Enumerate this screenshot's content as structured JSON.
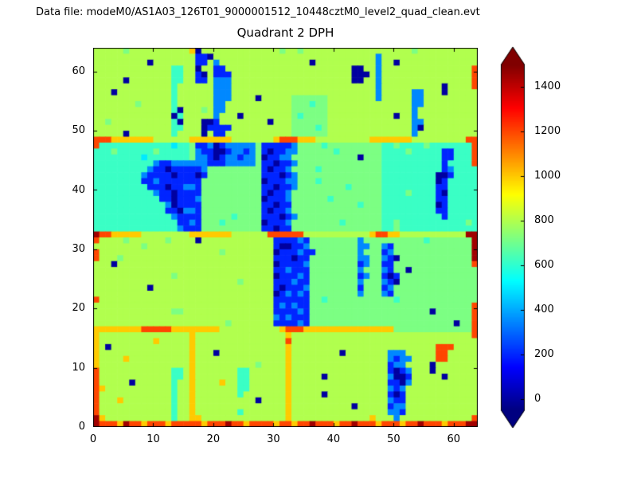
{
  "figure": {
    "header_label": "Data file: modeM0/AS1A03_126T01_9000001512_10448cztM0_level2_quad_clean.evt",
    "title": "Quadrant 2 DPH"
  },
  "chart_data": {
    "type": "heatmap",
    "title": "Quadrant 2 DPH",
    "xlabel": "",
    "ylabel": "",
    "xlim": [
      0,
      64
    ],
    "ylim": [
      0,
      64
    ],
    "grid": false,
    "xticks": [
      0,
      10,
      20,
      30,
      40,
      50,
      60
    ],
    "yticks": [
      0,
      10,
      20,
      30,
      40,
      50,
      60
    ],
    "colormap": "jet",
    "vmin": -50,
    "vmax": 1500,
    "colorbar_ticks": [
      0,
      200,
      400,
      600,
      800,
      1000,
      1200,
      1400
    ],
    "colorbar_extend": "both",
    "grid_encoding": {
      "0": 0,
      "1": 200,
      "2": 350,
      "3": 500,
      "4": 620,
      "5": 720,
      "6": 800,
      "7": 1000,
      "8": 1200,
      "9": 1450
    },
    "grid_rows_top_to_bottom": [
      "6666656666666666706666666666666566566666666666666666656666666666",
      "6666666666666666611066666666666666666666666666626666666666666666",
      "6666666660666666611626666666666666660666666666626606666666666666",
      "6666666666666446606611666666666666666666666006626666666666666668",
      "6666666666666446610611166666666666666666666000626666666666666668",
      "6666606666666446611622266666666666666666666006626666666666666668",
      "6666666666666466666622266666666666666666666666626666666666066668",
      "6660666666666466666622266666666666666666666666626666622666066666",
      "6666666666666466666622266660666665555556666666626666622666666666",
      "6666666566666466666622666666666665554556666666666666622666666666",
      "6666666666666406665622666666666665555556666666666666626666666666",
      "6666666666666046666626660666666665455556666666666606626666666666",
      "6656666666666406660016666666606665555556666666666666622666666666",
      "6666666666666446660111166666666665555456666666666666620666666666",
      "6666606666666466660611666666666665555556666666666666626666666666",
      "8887777777666666777777766666667888777666666666777777766666666688",
      "8444444444444344511201222225111112555545555555554454444544444448",
      "4445444444544444521100122125101122555555455555554444544444114448",
      "4444444434444444522101221225011225555555555505554444444444114448",
      "4444444444211222222111222225110112555555555555554444444444144448",
      "4444444442110111112555555555101125555455555555554444444444124444",
      "4444444421111011101555555555111012555555555555554444444440014444",
      "4444444411211111115555555555011122555455555555554444444440144444",
      "4444444441110112215555555555110112555555554555554444444441144444",
      "4444444444211011115555555555101125555555555555554444544441044444",
      "4444444444411011125555555555011125555554555555554444444441144444",
      "4444444444442011115555555555110115555555555545554444444440144444",
      "4444444444441102215555555555101125555555555555554444444441144444",
      "4444444444444211115555545555111012555555555555554444444444144444",
      "4444444444444411215554555555011125555555545555554454444444444454",
      "4444444444444421115555555555110115555555555555554454444444444444",
      "9887777766666666777777766666688888866666666666788776666666666699",
      "8666656666665666606666666666661111215555555525555555555455555559",
      "6666666656666666666666666666661001125555555522552155555555555559",
      "8666666666666666666665666666660111211555555525551255555555555559",
      "8666566666666666666666666666661110115555555522552105555555555559",
      "6660666666666666666666666666660111125555555512551155555555555558",
      "6666666666666666666666666666661121115555555525552155055555555555",
      "6666666666666566666666666666660111215555555512551015555555555555",
      "6666666666666666666666665666661112115555555525552105555555555555",
      "6666666660666666666666666666661011125555555515551255555555555555",
      "6666666666666666666666666666660121215555555525552155555555555555",
      "8666666666666666666666666666661111115545555555555545555555555555",
      "6666666666666666666666666666661212115555555555555555555555555558",
      "6666666666666556666666666666661111215555555555555555555505555558",
      "6666666666666666666666666666662121115555555555555555555555555558",
      "6666666666666666666666566666661111215555555555555555555555550558",
      "7777777788888777777776666666666788877777777777777755555555555558",
      "7666666666666666766666666666666676666666666666666666666666666668",
      "7666666666766666766666666666666686666666666666666666666666666666",
      "7606666666666666766666666666666676666666666666666666666668886666",
      "7666666666666666766606666666666676666666606666666222666668866666",
      "7666676666666666766666666666666676666666666666666212266668866666",
      "7666666666666666766666666665666676666666666666666122666606666666",
      "8666666666666446766666664466666676666666666666666101266606666666",
      "8666666666666446766666664466666676666606666666666200166666066666",
      "8666660666666466766667664466666676666666666666666110266666666666",
      "8766666666666466766666664466666676666666666666666212666666666666",
      "8666666666666466766666664666666676666606666666666101666666666666",
      "8666766666666466766666666660666676666666666666666211666666666666",
      "8666666666666466766666666666666676666666666066666122666666666666",
      "8666666666666466766666664666666676666666666666666221666666666666",
      "9766666666666466776666666666666676666666666666766626666666666668",
      "9888798878887888887888988788887887889888788988878887889888788899"
    ]
  }
}
